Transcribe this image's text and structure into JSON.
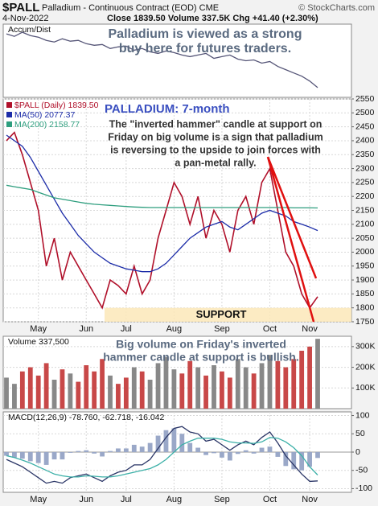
{
  "header": {
    "symbol": "$PALL",
    "name": "Palladium - Continuous Contract (EOD) CME",
    "source": "© StockCharts.com",
    "date": "4-Nov-2022",
    "quote": "Close 1839.50 Volume 337.5K Chg +41.40 (+2.30%)"
  },
  "chart_data": [
    {
      "type": "line",
      "legend": "Accum/Dist",
      "annotation": [
        "Palladium is viewed as a strong",
        "buy here for futures traders."
      ],
      "xlim": [
        0,
        39
      ],
      "ylim": [
        10,
        100
      ],
      "series": [
        {
          "color": "#555577",
          "values": [
            88,
            85,
            90,
            86,
            84,
            80,
            78,
            82,
            79,
            80,
            76,
            74,
            75,
            70,
            72,
            73,
            68,
            70,
            66,
            64,
            67,
            65,
            62,
            60,
            62,
            64,
            58,
            60,
            62,
            57,
            55,
            56,
            52,
            54,
            48,
            44,
            40,
            36,
            30,
            22
          ]
        }
      ]
    },
    {
      "type": "line",
      "title": "PALLADIUM: 7-month",
      "annotation": [
        "The \"inverted hammer\" candle at support on",
        "Friday on big volume is a sign that palladium",
        "is reversing to the upside to join forces with",
        "a pan-metal rally."
      ],
      "support_label": "SUPPORT",
      "xlim": [
        0,
        39
      ],
      "ylim": [
        1750,
        2550
      ],
      "grid": true,
      "yticks": [
        1750,
        1800,
        1850,
        1900,
        1950,
        2000,
        2050,
        2100,
        2150,
        2200,
        2250,
        2300,
        2350,
        2400,
        2450,
        2500,
        2550
      ],
      "xticks": [
        {
          "value": 4,
          "label": "May"
        },
        {
          "value": 10,
          "label": "Jun"
        },
        {
          "value": 15,
          "label": "Jul"
        },
        {
          "value": 21,
          "label": "Aug"
        },
        {
          "value": 27,
          "label": "Sep"
        },
        {
          "value": 33,
          "label": "Oct"
        },
        {
          "value": 38,
          "label": "Nov"
        }
      ],
      "series": [
        {
          "name": "$PALL (Daily) 1839.50",
          "color": "#b0102a",
          "values": [
            2400,
            2430,
            2350,
            2250,
            2150,
            1950,
            2050,
            1900,
            2000,
            1950,
            1900,
            1850,
            1800,
            1900,
            1880,
            1850,
            1950,
            1850,
            1900,
            2050,
            2150,
            2250,
            2200,
            2100,
            2200,
            2050,
            2150,
            2100,
            2000,
            2150,
            2200,
            2100,
            2250,
            2300,
            2150,
            2000,
            1950,
            1850,
            1800,
            1840
          ]
        },
        {
          "name": "MA(50) 2077.37",
          "color": "#1c2ca8",
          "values": [
            2420,
            2400,
            2380,
            2340,
            2290,
            2240,
            2190,
            2140,
            2100,
            2060,
            2030,
            2000,
            1980,
            1960,
            1950,
            1940,
            1935,
            1930,
            1930,
            1940,
            1960,
            1990,
            2020,
            2050,
            2070,
            2090,
            2100,
            2110,
            2090,
            2080,
            2100,
            2120,
            2140,
            2150,
            2140,
            2130,
            2110,
            2100,
            2090,
            2077.37
          ]
        },
        {
          "name": "MA(200) 2158.77",
          "color": "#2e9e7e",
          "values": [
            2240,
            2235,
            2230,
            2225,
            2215,
            2205,
            2195,
            2190,
            2185,
            2180,
            2175,
            2172,
            2170,
            2168,
            2166,
            2164,
            2162,
            2161,
            2160,
            2160,
            2160,
            2160,
            2160,
            2160,
            2160,
            2160,
            2160,
            2160,
            2160,
            2160,
            2160,
            2160,
            2160,
            2160,
            2160,
            2160,
            2159,
            2159,
            2159,
            2158.77
          ]
        }
      ]
    },
    {
      "type": "bar",
      "legend": "Volume 337,500",
      "annotation": [
        "Big volume on Friday's inverted",
        "hammer candle at support is bullish."
      ],
      "xlim": [
        0,
        39
      ],
      "ylim": [
        0,
        350000
      ],
      "grid": true,
      "yticks": [
        {
          "value": 100000,
          "label": "100K"
        },
        {
          "value": 200000,
          "label": "200K"
        },
        {
          "value": 300000,
          "label": "300K"
        }
      ],
      "up_color": "#888888",
      "down_color": "#c84848",
      "values": [
        150000,
        120000,
        180000,
        200000,
        160000,
        220000,
        140000,
        190000,
        170000,
        130000,
        210000,
        180000,
        240000,
        160000,
        120000,
        150000,
        200000,
        180000,
        140000,
        220000,
        250000,
        190000,
        170000,
        230000,
        200000,
        160000,
        210000,
        180000,
        150000,
        240000,
        200000,
        170000,
        220000,
        260000,
        230000,
        200000,
        240000,
        280000,
        300000,
        337500
      ]
    },
    {
      "type": "line",
      "legend": "MACD(12,26,9) -78.760, -62.718, -16.042",
      "xlim": [
        0,
        39
      ],
      "ylim": [
        -110,
        110
      ],
      "grid": true,
      "yticks": [
        -100,
        -50,
        0,
        50,
        100
      ],
      "xticks": [
        {
          "value": 4,
          "label": "May"
        },
        {
          "value": 10,
          "label": "Jun"
        },
        {
          "value": 15,
          "label": "Jul"
        },
        {
          "value": 21,
          "label": "Aug"
        },
        {
          "value": 27,
          "label": "Sep"
        },
        {
          "value": 33,
          "label": "Oct"
        },
        {
          "value": 38,
          "label": "Nov"
        }
      ],
      "series": [
        {
          "type": "bar",
          "color": "#9aa8c8",
          "values": [
            -10,
            -15,
            -18,
            -25,
            -30,
            -35,
            -20,
            -20,
            -2,
            3,
            5,
            -4,
            -12,
            3,
            10,
            10,
            20,
            15,
            25,
            45,
            60,
            65,
            50,
            25,
            12,
            -8,
            -3,
            -15,
            -23,
            -5,
            5,
            -4,
            12,
            15,
            -13,
            -38,
            -47,
            -50,
            -40,
            -16.042
          ]
        },
        {
          "type": "line",
          "color": "#2a3566",
          "values": [
            -20,
            -30,
            -40,
            -55,
            -70,
            -85,
            -80,
            -85,
            -70,
            -65,
            -60,
            -70,
            -80,
            -65,
            -55,
            -50,
            -35,
            -35,
            -20,
            10,
            40,
            65,
            70,
            55,
            50,
            30,
            35,
            20,
            5,
            20,
            30,
            20,
            40,
            55,
            25,
            -10,
            -35,
            -60,
            -80,
            -78.76
          ]
        },
        {
          "type": "line",
          "color": "#3cb0a8",
          "values": [
            -10,
            -15,
            -22,
            -30,
            -40,
            -50,
            -60,
            -65,
            -68,
            -68,
            -65,
            -66,
            -68,
            -68,
            -65,
            -60,
            -55,
            -50,
            -45,
            -35,
            -20,
            0,
            20,
            30,
            38,
            38,
            38,
            35,
            28,
            25,
            25,
            24,
            28,
            40,
            38,
            28,
            12,
            -10,
            -40,
            -62.718
          ]
        }
      ]
    }
  ]
}
